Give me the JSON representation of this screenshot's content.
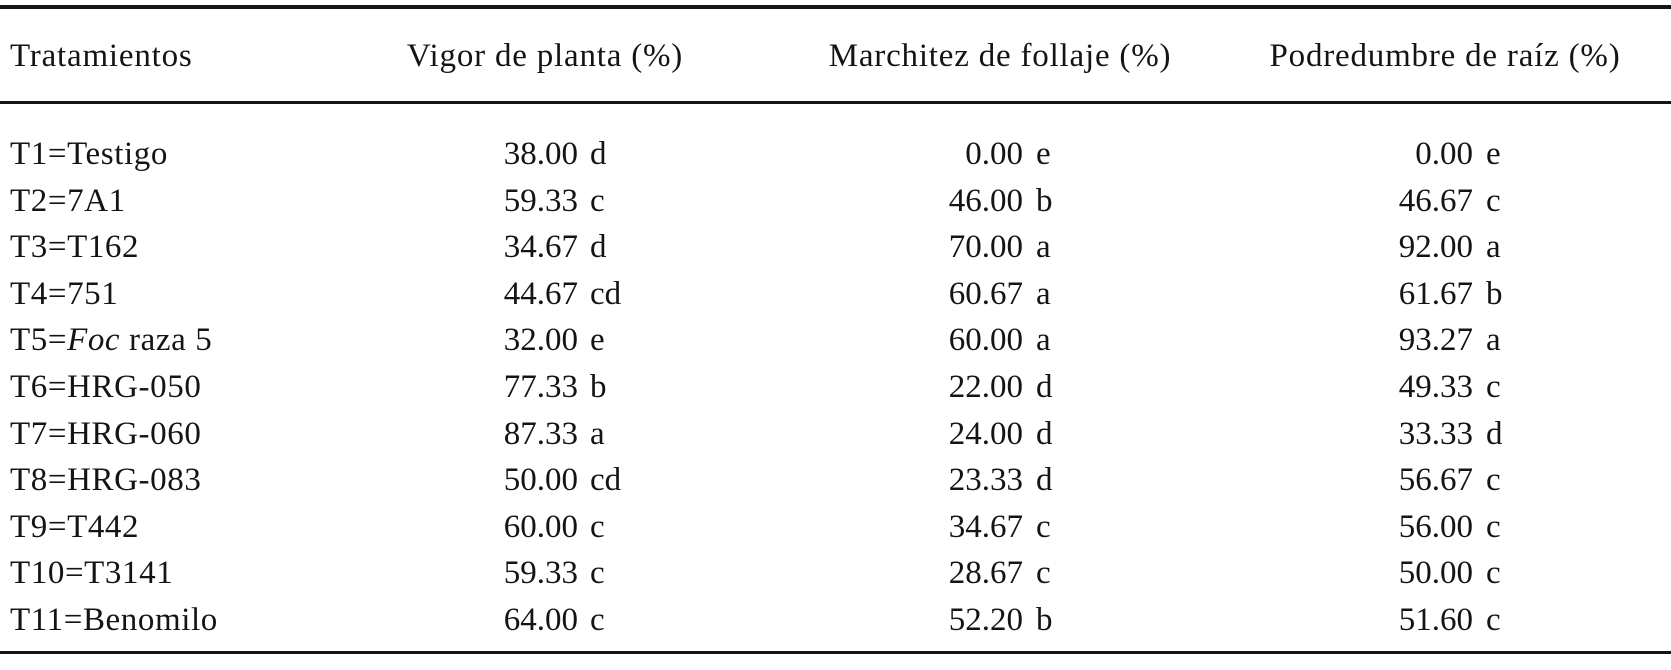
{
  "table": {
    "columns": [
      {
        "label": "Tratamientos"
      },
      {
        "label": "Vigor de planta (%)"
      },
      {
        "label": "Marchitez de follaje (%)"
      },
      {
        "label": "Podredumbre de raíz (%)"
      }
    ],
    "rows": [
      {
        "treatment": [
          {
            "text": "T1=Testigo",
            "italic": false
          }
        ],
        "values": [
          {
            "num": "38.00",
            "letters": "d"
          },
          {
            "num": "0.00",
            "letters": "e"
          },
          {
            "num": "0.00",
            "letters": "e"
          }
        ]
      },
      {
        "treatment": [
          {
            "text": "T2=7A1",
            "italic": false
          }
        ],
        "values": [
          {
            "num": "59.33",
            "letters": "c"
          },
          {
            "num": "46.00",
            "letters": "b"
          },
          {
            "num": "46.67",
            "letters": "c"
          }
        ]
      },
      {
        "treatment": [
          {
            "text": "T3=T162",
            "italic": false
          }
        ],
        "values": [
          {
            "num": "34.67",
            "letters": "d"
          },
          {
            "num": "70.00",
            "letters": "a"
          },
          {
            "num": "92.00",
            "letters": "a"
          }
        ]
      },
      {
        "treatment": [
          {
            "text": "T4=751",
            "italic": false
          }
        ],
        "values": [
          {
            "num": "44.67",
            "letters": "cd"
          },
          {
            "num": "60.67",
            "letters": "a"
          },
          {
            "num": "61.67",
            "letters": "b"
          }
        ]
      },
      {
        "treatment": [
          {
            "text": "T5=",
            "italic": false
          },
          {
            "text": "Foc",
            "italic": true
          },
          {
            "text": " raza 5",
            "italic": false
          }
        ],
        "values": [
          {
            "num": "32.00",
            "letters": "e"
          },
          {
            "num": "60.00",
            "letters": "a"
          },
          {
            "num": "93.27",
            "letters": "a"
          }
        ]
      },
      {
        "treatment": [
          {
            "text": "T6=HRG-050",
            "italic": false
          }
        ],
        "values": [
          {
            "num": "77.33",
            "letters": "b"
          },
          {
            "num": "22.00",
            "letters": "d"
          },
          {
            "num": "49.33",
            "letters": "c"
          }
        ]
      },
      {
        "treatment": [
          {
            "text": "T7=HRG-060",
            "italic": false
          }
        ],
        "values": [
          {
            "num": "87.33",
            "letters": "a"
          },
          {
            "num": "24.00",
            "letters": "d"
          },
          {
            "num": "33.33",
            "letters": "d"
          }
        ]
      },
      {
        "treatment": [
          {
            "text": "T8=HRG-083",
            "italic": false
          }
        ],
        "values": [
          {
            "num": "50.00",
            "letters": "cd"
          },
          {
            "num": "23.33",
            "letters": "d"
          },
          {
            "num": "56.67",
            "letters": "c"
          }
        ]
      },
      {
        "treatment": [
          {
            "text": "T9=T442",
            "italic": false
          }
        ],
        "values": [
          {
            "num": "60.00",
            "letters": "c"
          },
          {
            "num": "34.67",
            "letters": "c"
          },
          {
            "num": "56.00",
            "letters": "c"
          }
        ]
      },
      {
        "treatment": [
          {
            "text": "T10=T3141",
            "italic": false
          }
        ],
        "values": [
          {
            "num": "59.33",
            "letters": "c"
          },
          {
            "num": "28.67",
            "letters": "c"
          },
          {
            "num": "50.00",
            "letters": "c"
          }
        ]
      },
      {
        "treatment": [
          {
            "text": "T11=Benomilo",
            "italic": false
          }
        ],
        "values": [
          {
            "num": "64.00",
            "letters": "c"
          },
          {
            "num": "52.20",
            "letters": "b"
          },
          {
            "num": "51.60",
            "letters": "c"
          }
        ]
      }
    ]
  },
  "colors": {
    "text": "#141414",
    "rule": "#141414",
    "background": "#ffffff"
  }
}
